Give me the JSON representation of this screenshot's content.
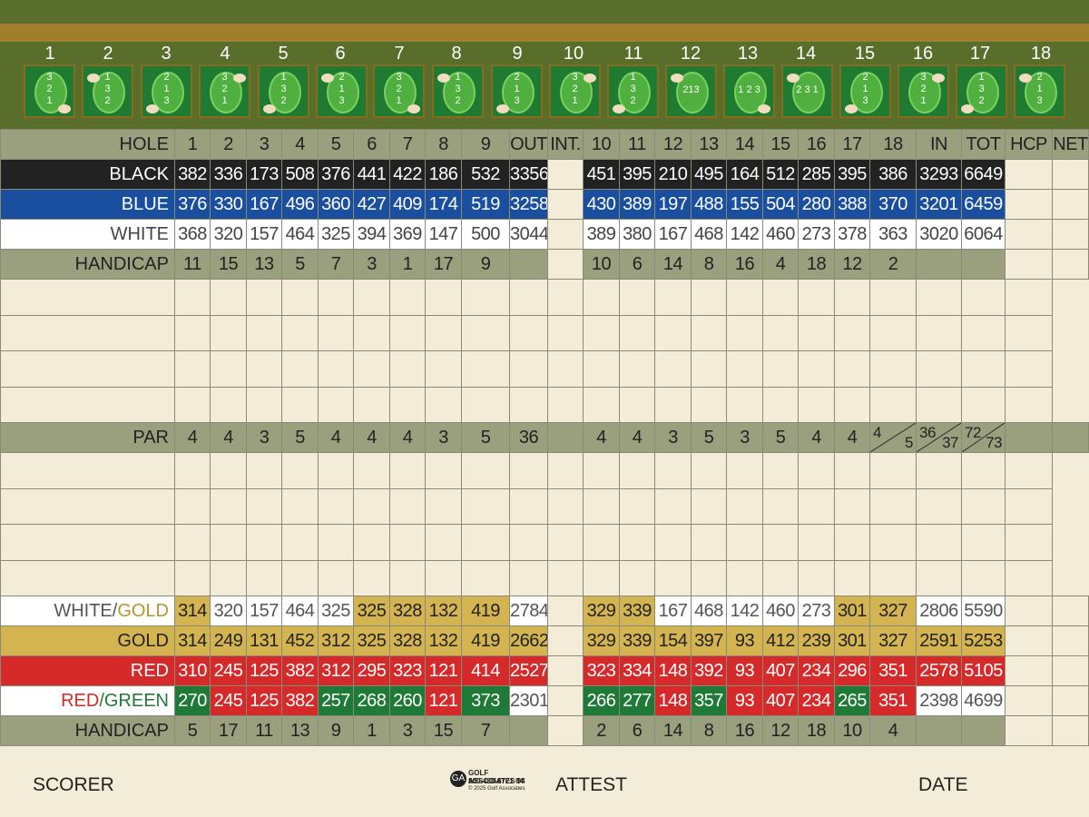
{
  "holes": [
    "1",
    "2",
    "3",
    "4",
    "5",
    "6",
    "7",
    "8",
    "9",
    "10",
    "11",
    "12",
    "13",
    "14",
    "15",
    "16",
    "17",
    "18"
  ],
  "pin_positions": [
    "3\n2\n1",
    "1\n3\n2",
    "2\n1\n3",
    "3\n2\n1",
    "1\n3\n2",
    "2\n1\n3",
    "3\n2\n1",
    "1\n3\n2",
    "2\n1\n3",
    "3\n2\n1",
    "1\n3\n2",
    "213",
    "1 2 3",
    "2 3 1",
    "2\n1\n3",
    "3\n2\n1",
    "1\n3\n2",
    "2\n1\n3"
  ],
  "labels": {
    "hole": "HOLE",
    "out": "OUT",
    "int": "INT.",
    "in": "IN",
    "tot": "TOT",
    "hcp": "HCP",
    "net": "NET",
    "black": "BLACK",
    "blue": "BLUE",
    "white": "WHITE",
    "handicap": "HANDICAP",
    "par": "PAR",
    "white_gold_a": "WHITE/",
    "white_gold_b": "GOLD",
    "gold": "GOLD",
    "red": "RED",
    "red_green_a": "RED",
    "red_green_b": "/GREEN"
  },
  "rows": {
    "black": [
      "382",
      "336",
      "173",
      "508",
      "376",
      "441",
      "422",
      "186",
      "532",
      "3356",
      "",
      "451",
      "395",
      "210",
      "495",
      "164",
      "512",
      "285",
      "395",
      "386",
      "3293",
      "6649",
      "",
      ""
    ],
    "blue": [
      "376",
      "330",
      "167",
      "496",
      "360",
      "427",
      "409",
      "174",
      "519",
      "3258",
      "",
      "430",
      "389",
      "197",
      "488",
      "155",
      "504",
      "280",
      "388",
      "370",
      "3201",
      "6459",
      "",
      ""
    ],
    "white": [
      "368",
      "320",
      "157",
      "464",
      "325",
      "394",
      "369",
      "147",
      "500",
      "3044",
      "",
      "389",
      "380",
      "167",
      "468",
      "142",
      "460",
      "273",
      "378",
      "363",
      "3020",
      "6064",
      "",
      ""
    ],
    "handicap_top": [
      "11",
      "15",
      "13",
      "5",
      "7",
      "3",
      "1",
      "17",
      "9",
      "",
      "",
      "10",
      "6",
      "14",
      "8",
      "16",
      "4",
      "18",
      "12",
      "2",
      "",
      "",
      "",
      ""
    ],
    "par": [
      "4",
      "4",
      "3",
      "5",
      "4",
      "4",
      "4",
      "3",
      "5",
      "36",
      "",
      "4",
      "4",
      "3",
      "5",
      "3",
      "5",
      "4",
      "4",
      "",
      "",
      "",
      "",
      ""
    ],
    "par_split": {
      "h18": [
        "4",
        "5"
      ],
      "in": [
        "36",
        "37"
      ],
      "tot": [
        "72",
        "73"
      ]
    },
    "white_gold": [
      "314",
      "320",
      "157",
      "464",
      "325",
      "325",
      "328",
      "132",
      "419",
      "2784",
      "",
      "329",
      "339",
      "167",
      "468",
      "142",
      "460",
      "273",
      "301",
      "327",
      "2806",
      "5590",
      "",
      ""
    ],
    "gold": [
      "314",
      "249",
      "131",
      "452",
      "312",
      "325",
      "328",
      "132",
      "419",
      "2662",
      "",
      "329",
      "339",
      "154",
      "397",
      "93",
      "412",
      "239",
      "301",
      "327",
      "2591",
      "5253",
      "",
      ""
    ],
    "red": [
      "310",
      "245",
      "125",
      "382",
      "312",
      "295",
      "323",
      "121",
      "414",
      "2527",
      "",
      "323",
      "334",
      "148",
      "392",
      "93",
      "407",
      "234",
      "296",
      "351",
      "2578",
      "5105",
      "",
      ""
    ],
    "red_green": [
      "270",
      "245",
      "125",
      "382",
      "257",
      "268",
      "260",
      "121",
      "373",
      "2301",
      "",
      "266",
      "277",
      "148",
      "357",
      "93",
      "407",
      "234",
      "265",
      "351",
      "2398",
      "4699",
      "",
      ""
    ],
    "handicap_bottom": [
      "5",
      "17",
      "11",
      "13",
      "9",
      "1",
      "3",
      "15",
      "7",
      "",
      "",
      "2",
      "6",
      "14",
      "8",
      "16",
      "12",
      "18",
      "10",
      "4",
      "",
      "",
      "",
      ""
    ]
  },
  "footer": {
    "scorer": "SCORER",
    "attest": "ATTEST",
    "date": "DATE",
    "logo_line1": "GOLF ASSOCIATES 94",
    "logo_line2": "800-438-8721 04",
    "logo_line3": "© 2025 Golf Associates"
  },
  "colors": {
    "black": "#222222",
    "blue": "#1a4fa0",
    "gold": "#d4b450",
    "red": "#d62a2a",
    "green": "#1e7a36",
    "olive": "#9a9f7e"
  }
}
